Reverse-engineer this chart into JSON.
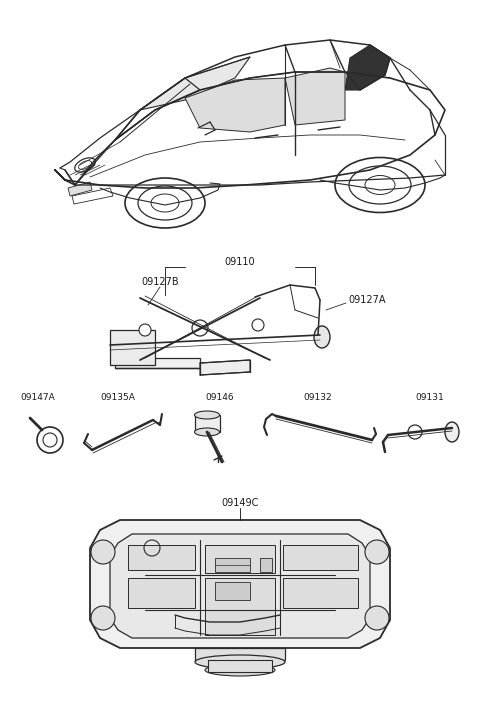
{
  "bg_color": "#ffffff",
  "line_color": "#2a2a2a",
  "text_color": "#1a1a1a",
  "lfs": 6.5,
  "fig_w": 4.8,
  "fig_h": 7.04,
  "dpi": 100,
  "xlim": [
    0,
    480
  ],
  "ylim": [
    0,
    704
  ]
}
